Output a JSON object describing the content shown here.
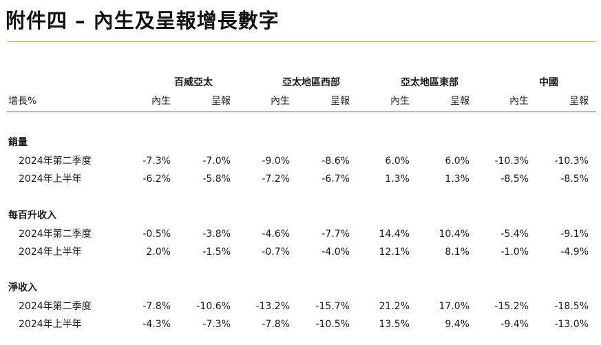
{
  "title": "附件四 – 內生及呈報增長數字",
  "table": {
    "stub_header": "增長%",
    "regions": [
      "百威亞太",
      "亞太地區西部",
      "亞太地區東部",
      "中國"
    ],
    "subheaders": [
      "內生",
      "呈報",
      "內生",
      "呈報",
      "內生",
      "呈報",
      "內生",
      "呈報"
    ],
    "sections": [
      {
        "label": "銷量",
        "rows": [
          {
            "label": "2024年第二季度",
            "values": [
              "-7.3%",
              "-7.0%",
              "-9.0%",
              "-8.6%",
              "6.0%",
              "6.0%",
              "-10.3%",
              "-10.3%"
            ]
          },
          {
            "label": "2024年上半年",
            "values": [
              "-6.2%",
              "-5.8%",
              "-7.2%",
              "-6.7%",
              "1.3%",
              "1.3%",
              "-8.5%",
              "-8.5%"
            ]
          }
        ]
      },
      {
        "label": "每百升收入",
        "rows": [
          {
            "label": "2024年第二季度",
            "values": [
              "-0.5%",
              "-3.8%",
              "-4.6%",
              "-7.7%",
              "14.4%",
              "10.4%",
              "-5.4%",
              "-9.1%"
            ]
          },
          {
            "label": "2024年上半年",
            "values": [
              "2.0%",
              "-1.5%",
              "-0.7%",
              "-4.0%",
              "12.1%",
              "8.1%",
              "-1.0%",
              "-4.9%"
            ]
          }
        ]
      },
      {
        "label": "淨收入",
        "rows": [
          {
            "label": "2024年第二季度",
            "values": [
              "-7.8%",
              "-10.6%",
              "-13.2%",
              "-15.7%",
              "21.2%",
              "17.0%",
              "-15.2%",
              "-18.5%"
            ]
          },
          {
            "label": "2024年上半年",
            "values": [
              "-4.3%",
              "-7.3%",
              "-7.8%",
              "-10.5%",
              "13.5%",
              "9.4%",
              "-9.4%",
              "-13.0%"
            ]
          }
        ]
      }
    ]
  }
}
